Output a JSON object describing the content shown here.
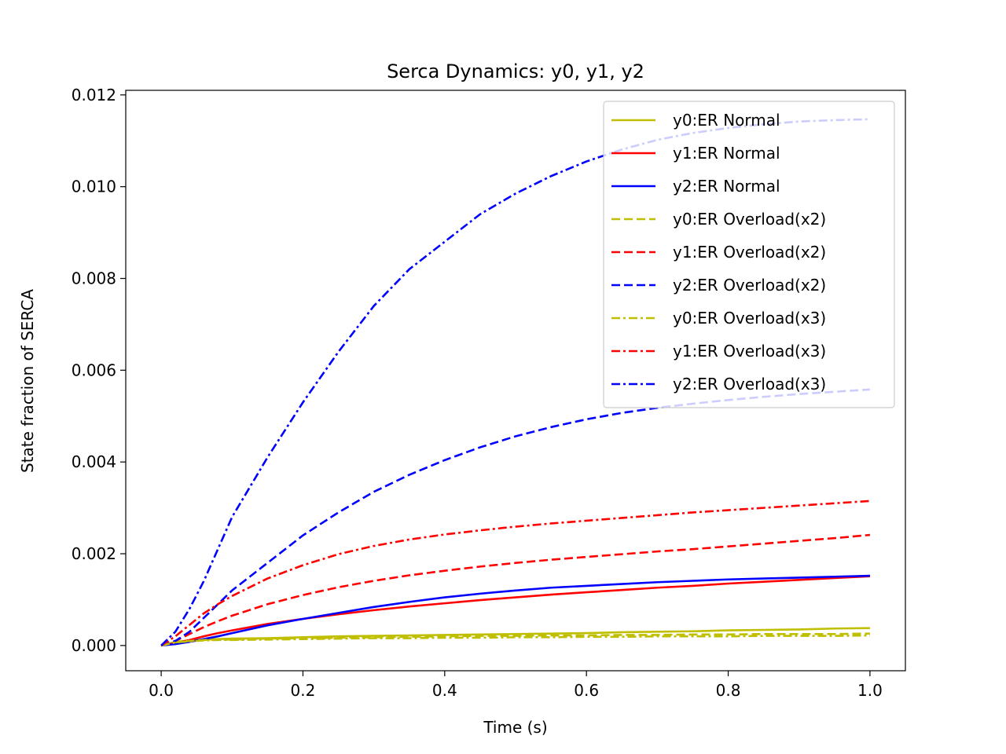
{
  "chart_data": {
    "type": "line",
    "title": "Serca Dynamics: y0, y1, y2",
    "xlabel": "Time (s)",
    "ylabel": "State fraction of SERCA",
    "xlim": [
      -0.05,
      1.05
    ],
    "ylim": [
      -0.00055,
      0.0121
    ],
    "xticks": [
      0.0,
      0.2,
      0.4,
      0.6,
      0.8,
      1.0
    ],
    "xtick_labels": [
      "0.0",
      "0.2",
      "0.4",
      "0.6",
      "0.8",
      "1.0"
    ],
    "yticks": [
      0.0,
      0.002,
      0.004,
      0.006,
      0.008,
      0.01,
      0.012
    ],
    "ytick_labels": [
      "0.000",
      "0.002",
      "0.004",
      "0.006",
      "0.008",
      "0.010",
      "0.012"
    ],
    "grid": false,
    "legend_position": "top-right",
    "x": [
      0.0,
      0.02,
      0.04,
      0.06,
      0.08,
      0.1,
      0.15,
      0.2,
      0.25,
      0.3,
      0.35,
      0.4,
      0.45,
      0.5,
      0.55,
      0.6,
      0.65,
      0.7,
      0.75,
      0.8,
      0.85,
      0.9,
      0.95,
      1.0
    ],
    "series": [
      {
        "name": "y0:ER Normal",
        "color": "#bfbf00",
        "style": "solid",
        "values": [
          0.0,
          8e-05,
          0.00011,
          0.00013,
          0.00014,
          0.00015,
          0.00016,
          0.00018,
          0.0002,
          0.00021,
          0.00022,
          0.00023,
          0.00024,
          0.00025,
          0.00026,
          0.00027,
          0.00029,
          0.0003,
          0.00031,
          0.00033,
          0.00034,
          0.00035,
          0.00037,
          0.00038
        ]
      },
      {
        "name": "y1:ER Normal",
        "color": "#ff0000",
        "style": "solid",
        "values": [
          0.0,
          5e-05,
          0.00012,
          0.0002,
          0.00027,
          0.00033,
          0.00047,
          0.00058,
          0.00068,
          0.00077,
          0.00085,
          0.00092,
          0.00099,
          0.00105,
          0.00111,
          0.00116,
          0.00121,
          0.00126,
          0.0013,
          0.00135,
          0.00139,
          0.00143,
          0.00147,
          0.00151
        ]
      },
      {
        "name": "y2:ER Normal",
        "color": "#0000ff",
        "style": "solid",
        "values": [
          0.0,
          3e-05,
          8e-05,
          0.00014,
          0.0002,
          0.00027,
          0.00044,
          0.00058,
          0.00071,
          0.00084,
          0.00095,
          0.00105,
          0.00113,
          0.0012,
          0.00126,
          0.0013,
          0.00134,
          0.00138,
          0.00141,
          0.00144,
          0.00146,
          0.00148,
          0.0015,
          0.00152
        ]
      },
      {
        "name": "y0:ER Overload(x2)",
        "color": "#bfbf00",
        "style": "dashed",
        "values": [
          0.0,
          7e-05,
          0.0001,
          0.00012,
          0.00013,
          0.00013,
          0.00015,
          0.00016,
          0.00017,
          0.00018,
          0.00019,
          0.0002,
          0.00021,
          0.00021,
          0.00022,
          0.00022,
          0.00023,
          0.00023,
          0.00024,
          0.00024,
          0.00025,
          0.00025,
          0.00025,
          0.00026
        ]
      },
      {
        "name": "y1:ER Overload(x2)",
        "color": "#ff0000",
        "style": "dashed",
        "values": [
          0.0,
          0.0001,
          0.00025,
          0.0004,
          0.00053,
          0.00065,
          0.0009,
          0.0011,
          0.00127,
          0.00141,
          0.00153,
          0.00163,
          0.00172,
          0.0018,
          0.00187,
          0.00193,
          0.00199,
          0.00205,
          0.0021,
          0.00216,
          0.00222,
          0.00228,
          0.00234,
          0.00241
        ]
      },
      {
        "name": "y2:ER Overload(x2)",
        "color": "#0000ff",
        "style": "dashed",
        "values": [
          0.0,
          0.0001,
          0.0003,
          0.0006,
          0.0009,
          0.0012,
          0.0018,
          0.0024,
          0.0029,
          0.00335,
          0.00372,
          0.00404,
          0.00432,
          0.00456,
          0.00476,
          0.00493,
          0.00507,
          0.00518,
          0.00527,
          0.00535,
          0.00542,
          0.00548,
          0.00553,
          0.00558
        ]
      },
      {
        "name": "y0:ER Overload(x3)",
        "color": "#bfbf00",
        "style": "dashdot",
        "values": [
          0.0,
          7e-05,
          9e-05,
          0.00011,
          0.00012,
          0.00012,
          0.00013,
          0.00014,
          0.00015,
          0.00016,
          0.00016,
          0.00017,
          0.00017,
          0.00018,
          0.00018,
          0.00019,
          0.00019,
          0.0002,
          0.0002,
          0.0002,
          0.00021,
          0.00021,
          0.00021,
          0.00022
        ]
      },
      {
        "name": "y1:ER Overload(x3)",
        "color": "#ff0000",
        "style": "dashdot",
        "values": [
          0.0,
          0.0002,
          0.00045,
          0.0007,
          0.0009,
          0.00108,
          0.00146,
          0.00175,
          0.00199,
          0.00217,
          0.00231,
          0.00242,
          0.00251,
          0.00259,
          0.00266,
          0.00272,
          0.00278,
          0.00284,
          0.0029,
          0.00295,
          0.003,
          0.00305,
          0.0031,
          0.00315
        ]
      },
      {
        "name": "y2:ER Overload(x3)",
        "color": "#0000ff",
        "style": "dashdot",
        "values": [
          0.0,
          0.0003,
          0.0008,
          0.0014,
          0.0021,
          0.0028,
          0.0041,
          0.0053,
          0.0064,
          0.0074,
          0.0082,
          0.0088,
          0.0094,
          0.00985,
          0.01023,
          0.01055,
          0.01081,
          0.01102,
          0.01117,
          0.01128,
          0.01136,
          0.01142,
          0.01145,
          0.01147
        ]
      }
    ]
  }
}
